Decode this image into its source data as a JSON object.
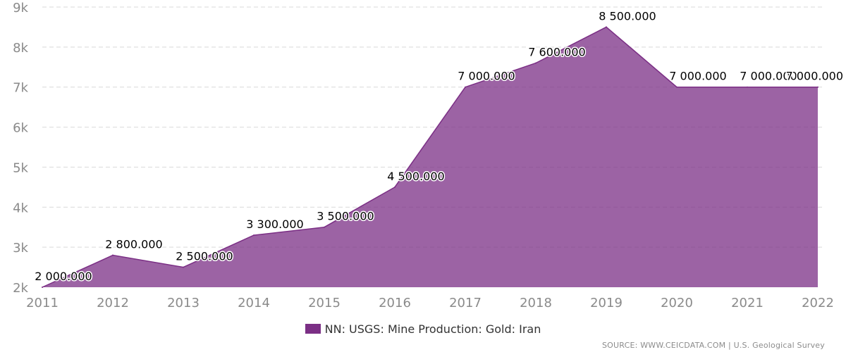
{
  "chart_data": {
    "type": "area",
    "x": [
      "2011",
      "2012",
      "2013",
      "2014",
      "2015",
      "2016",
      "2017",
      "2018",
      "2019",
      "2020",
      "2021",
      "2022"
    ],
    "series": [
      {
        "name": "NN: USGS: Mine Production: Gold: Iran",
        "values": [
          2000,
          2800,
          2500,
          3300,
          3500,
          4500,
          7000,
          7600,
          8500,
          7000,
          7000,
          7000
        ],
        "labels": [
          "2 000.000",
          "2 800.000",
          "2 500.000",
          "3 300.000",
          "3 500.000",
          "4 500.000",
          "7 000.000",
          "7 600.000",
          "8 500.000",
          "7 000.000",
          "7 000.000",
          "7 000.000"
        ],
        "color": "#7b2f85"
      }
    ],
    "ylim": [
      2000,
      9000
    ],
    "yticks": [
      2000,
      3000,
      4000,
      5000,
      6000,
      7000,
      8000,
      9000
    ],
    "ytick_labels": [
      "2k",
      "3k",
      "4k",
      "5k",
      "6k",
      "7k",
      "8k",
      "9k"
    ],
    "grid": true,
    "legend_position": "bottom-center"
  },
  "legend": {
    "label": "NN: USGS: Mine Production: Gold: Iran",
    "color": "#7b2f85"
  },
  "source": "SOURCE: WWW.CEICDATA.COM | U.S. Geological Survey"
}
